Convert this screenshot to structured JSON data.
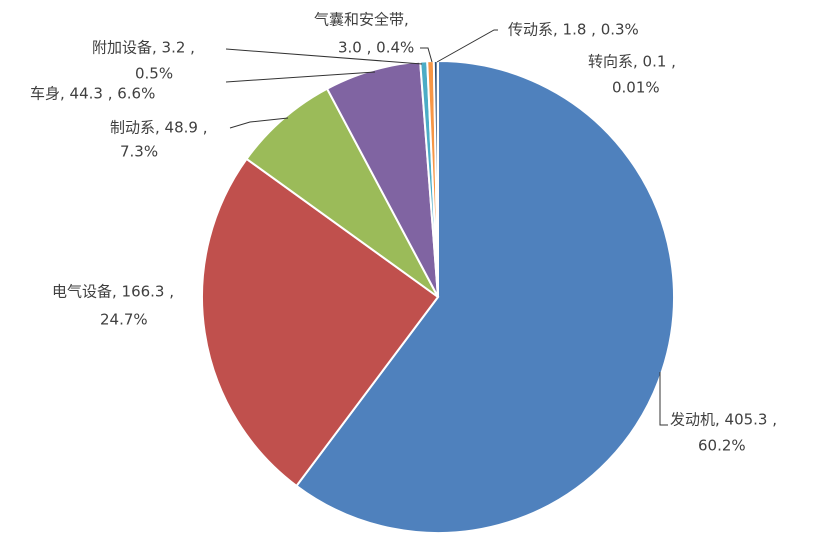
{
  "chart_data": {
    "type": "pie",
    "categories": [
      "发动机",
      "电气设备",
      "制动系",
      "车身",
      "附加设备",
      "气囊和安全带",
      "传动系",
      "转向系"
    ],
    "values": [
      405.3,
      166.3,
      48.9,
      44.3,
      3.2,
      3.0,
      1.8,
      0.1
    ],
    "colors": [
      "#4f81bd",
      "#c0504d",
      "#9bbb59",
      "#8064a2",
      "#4bacc6",
      "#f79646",
      "#2c4d75",
      "#772c2a"
    ],
    "data_labels": [
      [
        "发动机, 405.3 ,",
        "60.2%"
      ],
      [
        "电气设备, 166.3 ,",
        "24.7%"
      ],
      [
        "制动系, 48.9 ,",
        "7.3%"
      ],
      [
        "车身, 44.3 , 6.6%"
      ],
      [
        "附加设备, 3.2 ,",
        "0.5%"
      ],
      [
        "气囊和安全带,",
        "3.0 , 0.4%"
      ],
      [
        "传动系, 1.8 , 0.3%"
      ],
      [
        "转向系, 0.1 ,",
        "0.01%"
      ]
    ]
  }
}
